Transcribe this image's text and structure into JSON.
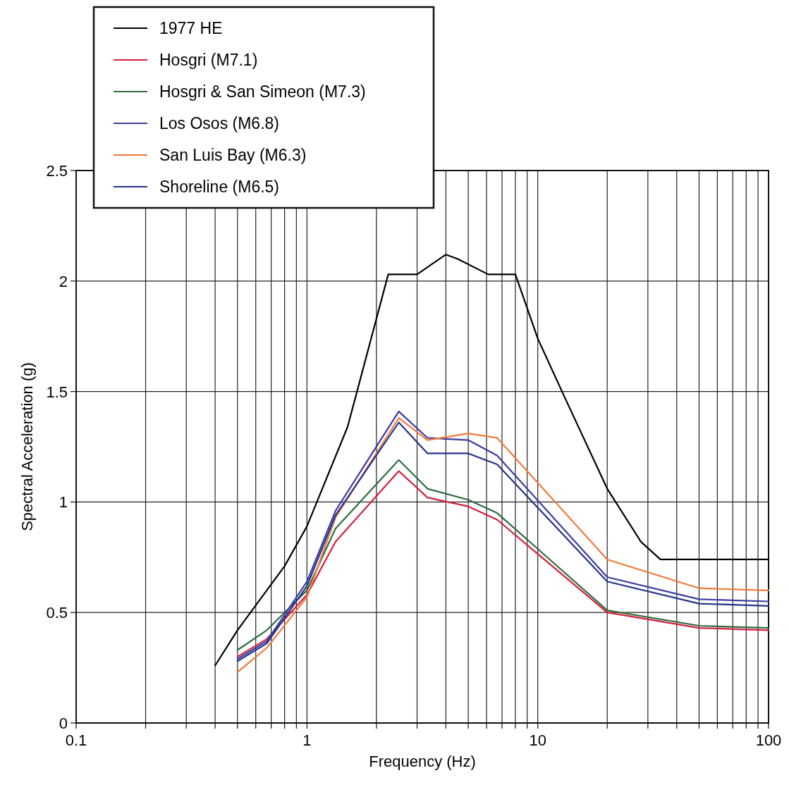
{
  "chart_data": {
    "type": "line",
    "xlabel": "Frequency (Hz)",
    "ylabel": "Spectral Acceleration (g)",
    "log": "x",
    "xlim": [
      0.1,
      100
    ],
    "ylim": [
      0,
      2.5
    ],
    "xticks": [
      0.1,
      {
        "value": 0.2,
        "label": null
      },
      {
        "value": 0.3,
        "label": null
      },
      {
        "value": 0.4,
        "label": null
      },
      {
        "value": 0.5,
        "label": null
      },
      {
        "value": 0.6,
        "label": null
      },
      {
        "value": 0.7,
        "label": null
      },
      {
        "value": 0.8,
        "label": null
      },
      {
        "value": 0.9,
        "label": null
      },
      1,
      {
        "value": 2,
        "label": null
      },
      {
        "value": 3,
        "label": null
      },
      {
        "value": 4,
        "label": null
      },
      {
        "value": 5,
        "label": null
      },
      {
        "value": 6,
        "label": null
      },
      {
        "value": 7,
        "label": null
      },
      {
        "value": 8,
        "label": null
      },
      {
        "value": 9,
        "label": null
      },
      10,
      {
        "value": 20,
        "label": null
      },
      {
        "value": 30,
        "label": null
      },
      {
        "value": 40,
        "label": null
      },
      {
        "value": 50,
        "label": null
      },
      {
        "value": 60,
        "label": null
      },
      {
        "value": 70,
        "label": null
      },
      {
        "value": 80,
        "label": null
      },
      {
        "value": 90,
        "label": null
      },
      100
    ],
    "yticks": [
      0,
      0.5,
      1,
      1.5,
      2,
      2.5
    ],
    "grid": true,
    "legend": "top left",
    "marker": "none",
    "line_style": "solid",
    "series": [
      {
        "name": "1977 HE",
        "color": "#000000",
        "x": [
          0.4,
          0.5,
          0.8,
          1,
          1.5,
          2.25,
          3,
          4,
          4.5,
          6.1,
          8,
          10,
          13,
          20,
          28,
          34,
          100
        ],
        "values": [
          0.26,
          0.42,
          0.71,
          0.89,
          1.34,
          2.03,
          2.03,
          2.12,
          2.1,
          2.03,
          2.03,
          1.74,
          1.48,
          1.06,
          0.82,
          0.74,
          0.74
        ]
      },
      {
        "name": "Hosgri (M7.1)",
        "color": "#d4203c",
        "x": [
          0.5,
          0.67,
          1,
          1.33,
          2.5,
          3.33,
          5,
          6.67,
          20,
          50,
          100
        ],
        "values": [
          0.3,
          0.38,
          0.58,
          0.82,
          1.14,
          1.02,
          0.98,
          0.92,
          0.5,
          0.43,
          0.42
        ]
      },
      {
        "name": "Hosgri & San Simeon (M7.3)",
        "color": "#2e6b3e",
        "x": [
          0.5,
          0.67,
          1,
          1.33,
          2.5,
          3.33,
          5,
          6.67,
          20,
          50,
          100
        ],
        "values": [
          0.33,
          0.42,
          0.6,
          0.88,
          1.19,
          1.06,
          1.01,
          0.95,
          0.51,
          0.44,
          0.43
        ]
      },
      {
        "name": "Los Osos (M6.8)",
        "color": "#3b3ba0",
        "x": [
          0.5,
          0.67,
          1,
          1.33,
          2.5,
          3.33,
          5,
          6.67,
          20,
          50,
          100
        ],
        "values": [
          0.29,
          0.37,
          0.64,
          0.96,
          1.41,
          1.29,
          1.28,
          1.21,
          0.66,
          0.56,
          0.55
        ]
      },
      {
        "name": "San Luis Bay (M6.3)",
        "color": "#f07a3a",
        "x": [
          0.5,
          0.67,
          1,
          1.33,
          2.5,
          3.33,
          5,
          6.67,
          20,
          50,
          100
        ],
        "values": [
          0.23,
          0.34,
          0.57,
          0.93,
          1.38,
          1.28,
          1.31,
          1.29,
          0.74,
          0.61,
          0.6
        ]
      },
      {
        "name": "Shoreline (M6.5)",
        "color": "#22338a",
        "x": [
          0.5,
          0.67,
          1,
          1.33,
          2.5,
          3.33,
          5,
          6.67,
          20,
          50,
          100
        ],
        "values": [
          0.28,
          0.36,
          0.62,
          0.94,
          1.36,
          1.22,
          1.22,
          1.17,
          0.64,
          0.54,
          0.53
        ]
      }
    ]
  }
}
